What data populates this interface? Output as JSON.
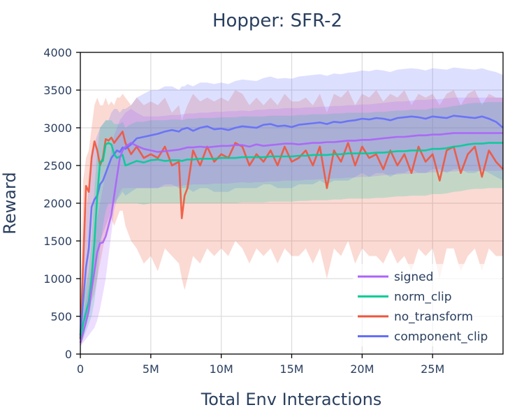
{
  "chart_data": {
    "type": "line",
    "title": "Hopper: SFR-2",
    "xlabel": "Total Env Interactions",
    "ylabel": "Reward",
    "xlim": [
      0,
      30000000
    ],
    "ylim": [
      0,
      4000
    ],
    "x_ticks": [
      0,
      5000000,
      10000000,
      15000000,
      20000000,
      25000000
    ],
    "x_tick_labels": [
      "0",
      "5M",
      "10M",
      "15M",
      "20M",
      "25M"
    ],
    "y_ticks": [
      0,
      500,
      1000,
      1500,
      2000,
      2500,
      3000,
      3500,
      4000
    ],
    "y_tick_labels": [
      "0",
      "500",
      "1000",
      "1500",
      "2000",
      "2500",
      "3000",
      "3500",
      "4000"
    ],
    "grid": true,
    "legend_position": "bottom-right",
    "x": [
      0,
      200000,
      400000,
      600000,
      800000,
      1000000,
      1200000,
      1400000,
      1600000,
      1800000,
      2000000,
      2200000,
      2400000,
      2600000,
      2800000,
      3000000,
      3200000,
      3600000,
      4000000,
      4500000,
      5000000,
      5500000,
      6000000,
      6500000,
      7000000,
      7200000,
      7400000,
      7600000,
      8000000,
      8500000,
      9000000,
      9500000,
      10000000,
      10500000,
      11000000,
      11500000,
      12000000,
      12500000,
      13000000,
      13500000,
      14000000,
      14500000,
      15000000,
      15500000,
      16000000,
      16500000,
      17000000,
      17500000,
      18000000,
      18500000,
      19000000,
      19500000,
      20000000,
      20500000,
      21000000,
      21500000,
      22000000,
      22500000,
      23000000,
      23500000,
      24000000,
      24500000,
      25000000,
      25500000,
      26000000,
      26500000,
      27000000,
      27500000,
      28000000,
      28500000,
      29000000,
      29500000,
      30000000
    ],
    "series": [
      {
        "name": "signed",
        "color": "#ab63fa",
        "values": [
          150,
          280,
          420,
          580,
          850,
          1100,
          1350,
          1470,
          1480,
          1560,
          1700,
          1850,
          2100,
          2350,
          2600,
          2700,
          2750,
          2800,
          2760,
          2720,
          2700,
          2680,
          2690,
          2700,
          2710,
          2720,
          2730,
          2740,
          2740,
          2750,
          2740,
          2750,
          2760,
          2760,
          2770,
          2770,
          2750,
          2780,
          2760,
          2770,
          2780,
          2790,
          2790,
          2780,
          2790,
          2800,
          2800,
          2810,
          2810,
          2820,
          2830,
          2830,
          2840,
          2840,
          2850,
          2860,
          2870,
          2880,
          2880,
          2890,
          2900,
          2900,
          2910,
          2910,
          2920,
          2930,
          2930,
          2930,
          2930,
          2930,
          2930,
          2930,
          2930
        ],
        "lower": [
          100,
          150,
          200,
          250,
          300,
          350,
          450,
          600,
          800,
          1000,
          1300,
          1600,
          1900,
          2050,
          2150,
          2200,
          2200,
          2200,
          2200,
          2200,
          2200,
          2200,
          2220,
          2220,
          2230,
          2230,
          2240,
          2240,
          2250,
          2250,
          2250,
          2260,
          2260,
          2260,
          2270,
          2280,
          2270,
          2280,
          2280,
          2290,
          2290,
          2300,
          2300,
          2300,
          2310,
          2310,
          2320,
          2320,
          2330,
          2330,
          2340,
          2340,
          2350,
          2350,
          2360,
          2370,
          2380,
          2380,
          2390,
          2390,
          2400,
          2400,
          2410,
          2410,
          2420,
          2420,
          2430,
          2430,
          2430,
          2430,
          2430,
          2430,
          2430
        ],
        "upper": [
          250,
          500,
          700,
          900,
          1200,
          1500,
          1800,
          2000,
          2200,
          2400,
          2500,
          2700,
          2900,
          3000,
          3100,
          3150,
          3200,
          3250,
          3200,
          3150,
          3150,
          3150,
          3160,
          3170,
          3170,
          3180,
          3180,
          3190,
          3190,
          3200,
          3200,
          3210,
          3210,
          3220,
          3220,
          3230,
          3220,
          3240,
          3240,
          3250,
          3250,
          3260,
          3260,
          3260,
          3270,
          3270,
          3280,
          3280,
          3290,
          3290,
          3300,
          3300,
          3310,
          3310,
          3320,
          3330,
          3340,
          3350,
          3350,
          3360,
          3370,
          3370,
          3380,
          3380,
          3390,
          3400,
          3400,
          3400,
          3400,
          3400,
          3400,
          3400,
          3400
        ]
      },
      {
        "name": "norm_clip",
        "color": "#00cc96",
        "values": [
          200,
          400,
          550,
          700,
          1000,
          1500,
          2100,
          2550,
          2560,
          2780,
          2800,
          2780,
          2650,
          2600,
          2620,
          2640,
          2500,
          2530,
          2560,
          2540,
          2570,
          2580,
          2560,
          2570,
          2570,
          2560,
          2570,
          2580,
          2580,
          2590,
          2590,
          2590,
          2600,
          2600,
          2600,
          2610,
          2610,
          2610,
          2610,
          2620,
          2620,
          2620,
          2620,
          2630,
          2630,
          2640,
          2640,
          2640,
          2650,
          2650,
          2660,
          2660,
          2660,
          2660,
          2670,
          2670,
          2680,
          2690,
          2690,
          2700,
          2700,
          2700,
          2720,
          2720,
          2730,
          2750,
          2760,
          2780,
          2790,
          2790,
          2800,
          2800,
          2800
        ],
        "lower": [
          100,
          200,
          300,
          400,
          500,
          700,
          1000,
          1400,
          1700,
          1900,
          2000,
          2000,
          2000,
          2000,
          2000,
          2000,
          2000,
          2000,
          2000,
          1980,
          2000,
          2000,
          2000,
          2000,
          2000,
          2000,
          2000,
          2000,
          2000,
          2000,
          2000,
          2000,
          2000,
          2000,
          2000,
          2010,
          2010,
          2010,
          2010,
          2020,
          2020,
          2020,
          2020,
          2030,
          2030,
          2040,
          2040,
          2040,
          2050,
          2050,
          2060,
          2060,
          2060,
          2060,
          2070,
          2070,
          2080,
          2090,
          2090,
          2100,
          2100,
          2100,
          2120,
          2120,
          2130,
          2150,
          2160,
          2180,
          2190,
          2190,
          2200,
          2200,
          2200
        ],
        "upper": [
          300,
          700,
          900,
          1100,
          1500,
          2200,
          2700,
          3000,
          3050,
          3100,
          3100,
          3100,
          3050,
          3050,
          3050,
          3080,
          3000,
          3050,
          3080,
          3080,
          3100,
          3100,
          3100,
          3110,
          3110,
          3100,
          3110,
          3120,
          3120,
          3130,
          3130,
          3130,
          3140,
          3140,
          3140,
          3150,
          3150,
          3150,
          3150,
          3160,
          3160,
          3160,
          3160,
          3170,
          3170,
          3180,
          3180,
          3180,
          3190,
          3190,
          3200,
          3200,
          3200,
          3200,
          3210,
          3210,
          3220,
          3230,
          3230,
          3240,
          3240,
          3240,
          3260,
          3260,
          3270,
          3290,
          3300,
          3320,
          3330,
          3330,
          3340,
          3340,
          3340
        ]
      },
      {
        "name": "no_transform",
        "color": "#ef553b",
        "values": [
          200,
          1200,
          2230,
          2150,
          2600,
          2820,
          2700,
          2500,
          2600,
          2850,
          2830,
          2870,
          2800,
          2850,
          2900,
          2950,
          2800,
          2650,
          2750,
          2600,
          2650,
          2600,
          2750,
          2500,
          2550,
          1800,
          2100,
          2200,
          2700,
          2500,
          2750,
          2550,
          2650,
          2600,
          2800,
          2750,
          2500,
          2650,
          2550,
          2700,
          2500,
          2750,
          2550,
          2600,
          2700,
          2500,
          2750,
          2200,
          2700,
          2550,
          2800,
          2500,
          2750,
          2600,
          2650,
          2450,
          2700,
          2500,
          2650,
          2400,
          2750,
          2550,
          2650,
          2300,
          2700,
          2750,
          2400,
          2650,
          2750,
          2350,
          2700,
          2550,
          2450
        ],
        "lower": [
          100,
          200,
          400,
          500,
          700,
          800,
          1000,
          1200,
          1400,
          1600,
          1700,
          1800,
          1700,
          1800,
          1900,
          1900,
          1700,
          1500,
          1400,
          1200,
          1300,
          1100,
          1400,
          1300,
          1200,
          1000,
          850,
          1000,
          1300,
          1200,
          1400,
          1300,
          1400,
          1300,
          1500,
          1400,
          1200,
          1400,
          1300,
          1400,
          1200,
          1400,
          1300,
          1300,
          1400,
          1200,
          1400,
          1000,
          1400,
          1300,
          1500,
          1200,
          1400,
          1300,
          1300,
          1200,
          1400,
          1200,
          1300,
          1100,
          1400,
          1300,
          1400,
          1000,
          1400,
          1400,
          1100,
          1300,
          1400,
          1100,
          1400,
          1300,
          1300
        ],
        "upper": [
          300,
          2300,
          2600,
          2700,
          3000,
          3300,
          3400,
          3300,
          3300,
          3400,
          3300,
          3350,
          3300,
          3400,
          3400,
          3450,
          3400,
          3300,
          3400,
          3300,
          3350,
          3300,
          3400,
          3200,
          3300,
          3100,
          3200,
          3300,
          3450,
          3350,
          3400,
          3350,
          3400,
          3350,
          3500,
          3450,
          3300,
          3400,
          3300,
          3400,
          3300,
          3450,
          3350,
          3350,
          3400,
          3300,
          3450,
          3200,
          3450,
          3400,
          3500,
          3300,
          3450,
          3400,
          3500,
          3350,
          3450,
          3400,
          3500,
          3300,
          3450,
          3400,
          3450,
          3300,
          3450,
          3500,
          3300,
          3450,
          3500,
          3300,
          3450,
          3400,
          3400
        ]
      },
      {
        "name": "component_clip",
        "color": "#636efa",
        "values": [
          250,
          700,
          1150,
          1400,
          1950,
          2050,
          2100,
          2250,
          2300,
          2400,
          2500,
          2600,
          2650,
          2700,
          2680,
          2740,
          2720,
          2780,
          2860,
          2880,
          2900,
          2920,
          2950,
          2970,
          2950,
          2980,
          2990,
          3000,
          2960,
          3000,
          3020,
          2980,
          2990,
          2970,
          3000,
          3020,
          3010,
          3000,
          3040,
          3050,
          3020,
          3030,
          3010,
          3040,
          3050,
          3060,
          3070,
          3050,
          3080,
          3070,
          3090,
          3100,
          3120,
          3110,
          3130,
          3120,
          3100,
          3130,
          3140,
          3150,
          3140,
          3120,
          3150,
          3140,
          3130,
          3160,
          3150,
          3140,
          3130,
          3150,
          3120,
          3080,
          3000
        ],
        "lower": [
          120,
          250,
          400,
          600,
          900,
          1100,
          1300,
          1500,
          1600,
          1700,
          1800,
          1900,
          2000,
          2050,
          2100,
          2150,
          2100,
          2150,
          2200,
          2200,
          2200,
          2200,
          2250,
          2250,
          2200,
          2200,
          2200,
          2200,
          2150,
          2200,
          2200,
          2150,
          2150,
          2150,
          2200,
          2200,
          2200,
          2200,
          2250,
          2250,
          2200,
          2200,
          2200,
          2250,
          2250,
          2250,
          2300,
          2250,
          2300,
          2300,
          2300,
          2350,
          2400,
          2350,
          2400,
          2400,
          2350,
          2400,
          2400,
          2450,
          2400,
          2400,
          2450,
          2450,
          2400,
          2450,
          2450,
          2400,
          2400,
          2450,
          2400,
          2350,
          2300
        ],
        "upper": [
          400,
          1200,
          1900,
          2200,
          2700,
          2800,
          2900,
          3000,
          3050,
          3100,
          3100,
          3200,
          3250,
          3250,
          3200,
          3250,
          3250,
          3300,
          3400,
          3450,
          3500,
          3500,
          3550,
          3550,
          3500,
          3550,
          3550,
          3580,
          3550,
          3600,
          3600,
          3580,
          3600,
          3580,
          3620,
          3640,
          3630,
          3620,
          3660,
          3680,
          3650,
          3660,
          3650,
          3680,
          3690,
          3700,
          3710,
          3690,
          3720,
          3710,
          3730,
          3740,
          3760,
          3750,
          3770,
          3760,
          3740,
          3770,
          3780,
          3790,
          3780,
          3760,
          3790,
          3780,
          3770,
          3800,
          3790,
          3780,
          3770,
          3790,
          3760,
          3740,
          3700
        ]
      }
    ]
  }
}
